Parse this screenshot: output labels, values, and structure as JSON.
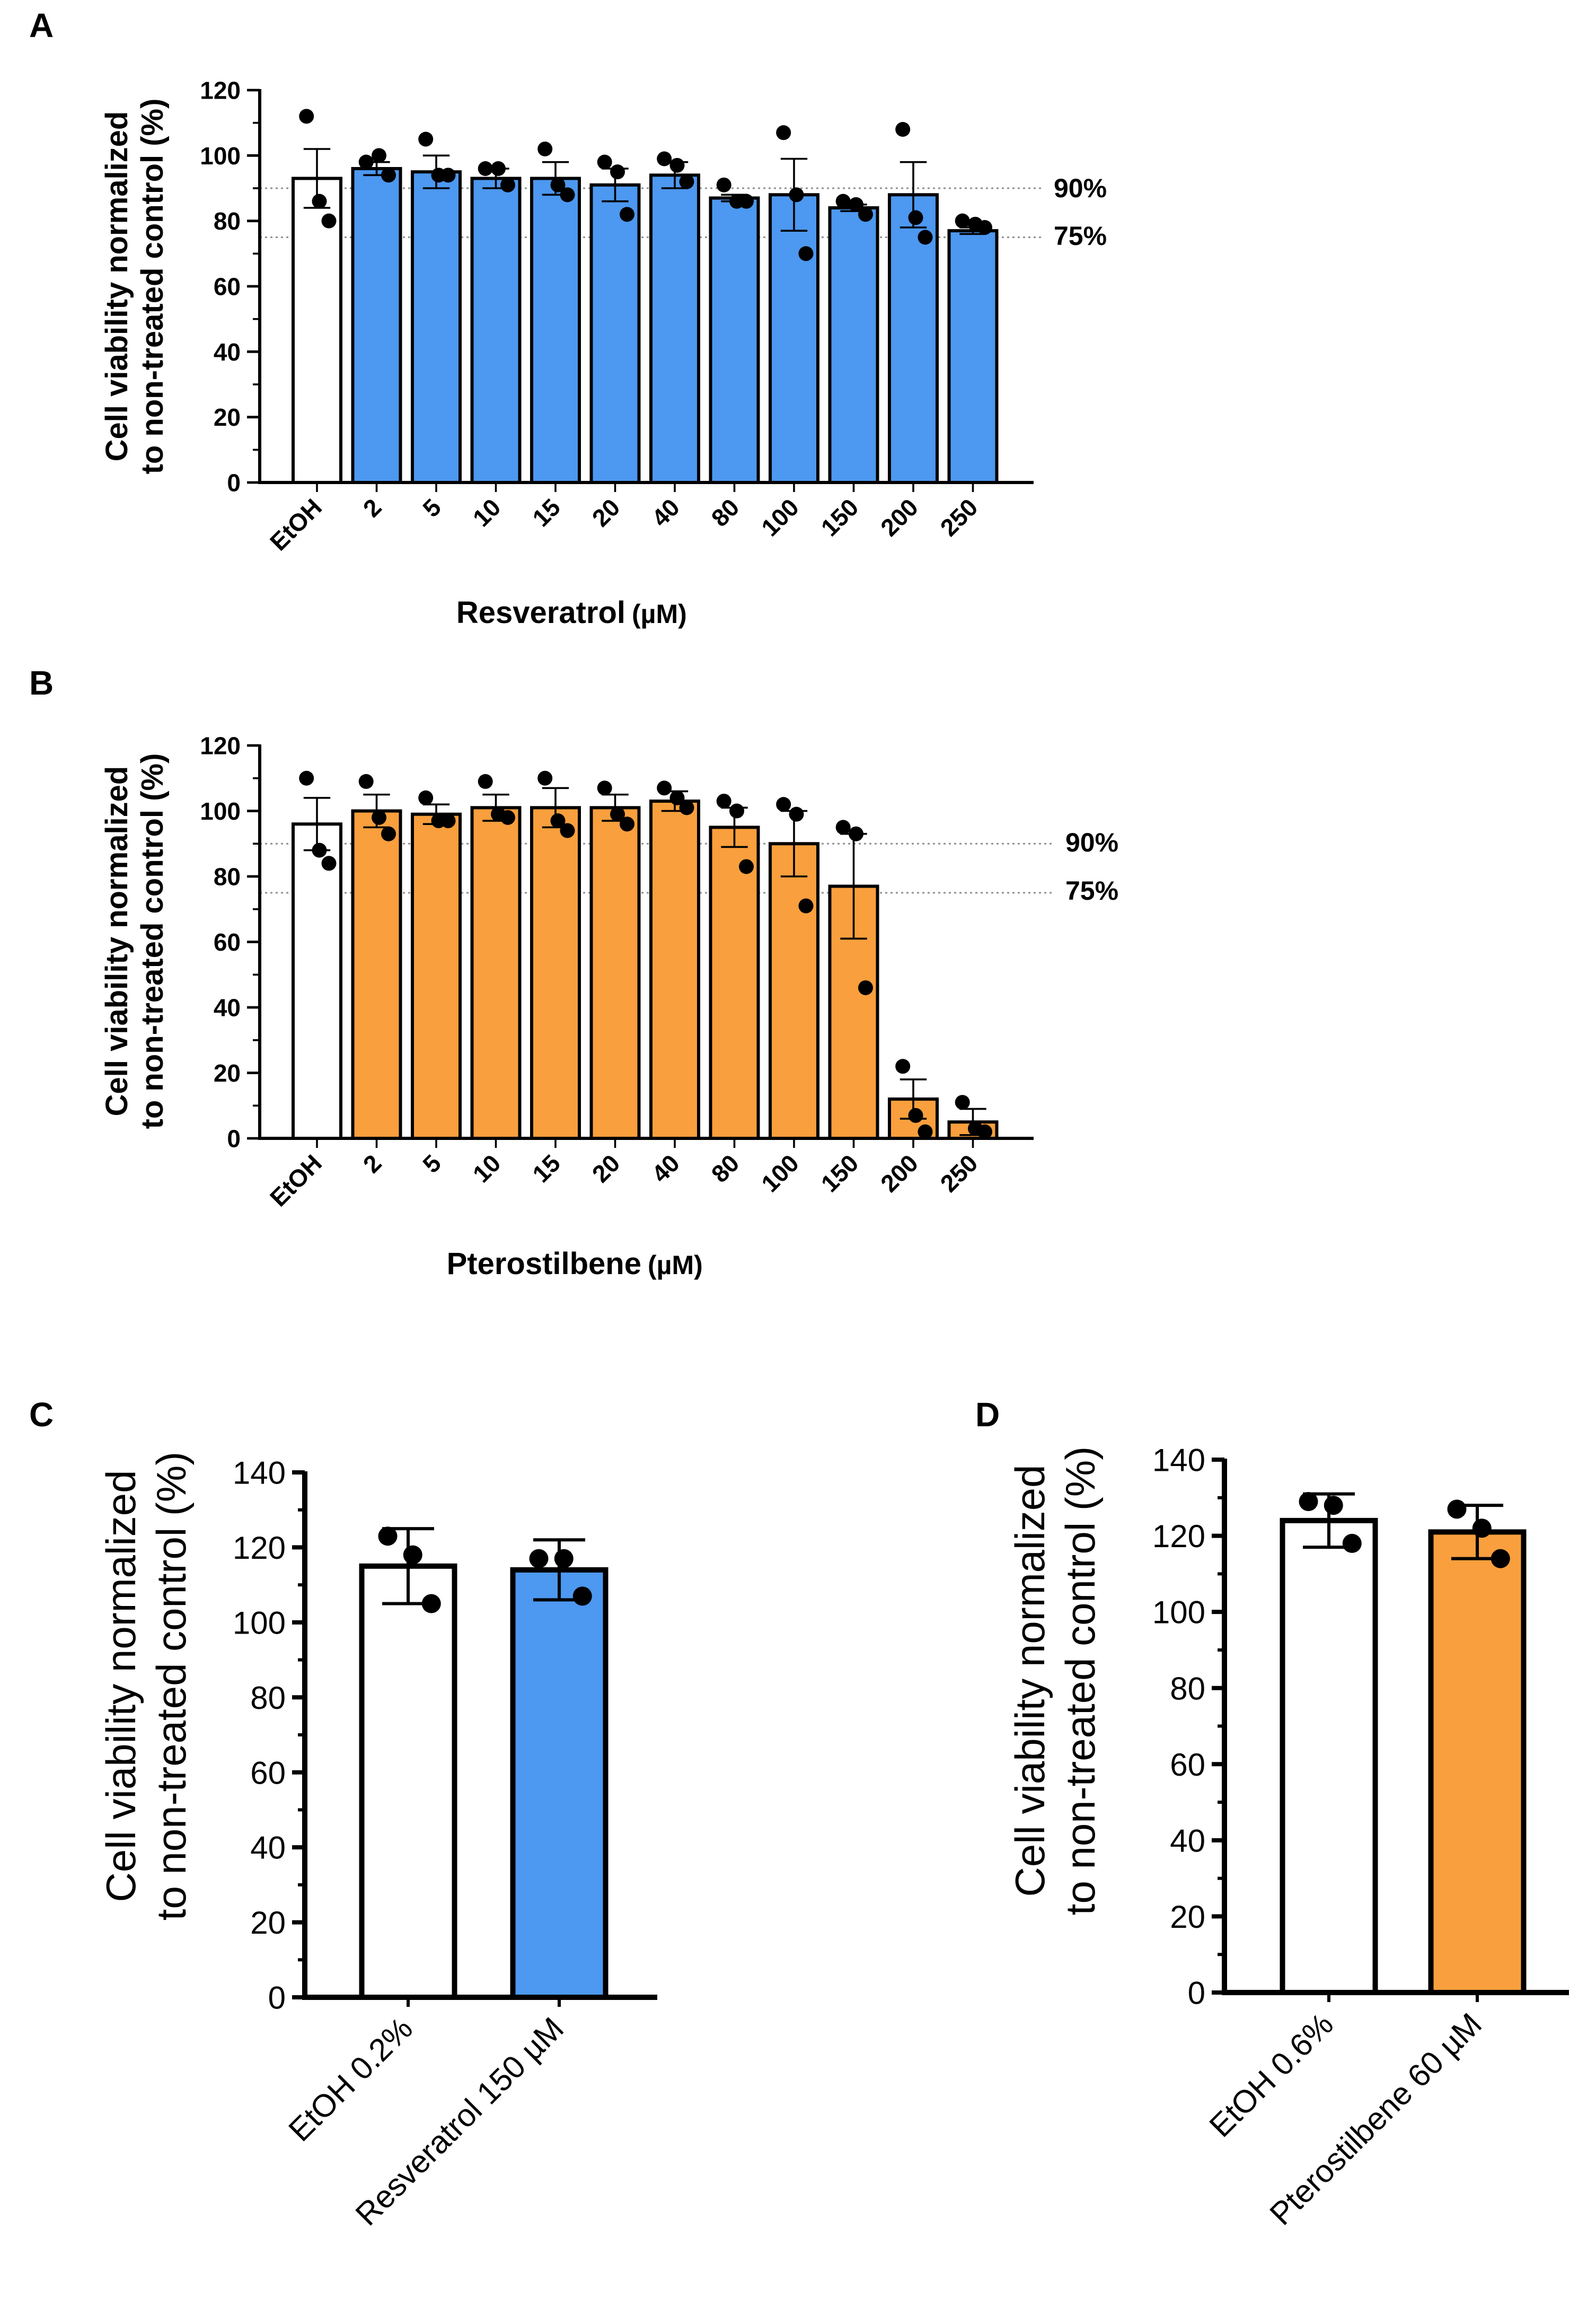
{
  "colors": {
    "control": "#ffffff",
    "resveratrol": "#4d98f0",
    "pterostilbene": "#f99f3d",
    "axis": "#000000",
    "reference_line": "#909090"
  },
  "chart_data": [
    {
      "panel": "A",
      "type": "bar",
      "ylabel": [
        "Cell viability normalized",
        "to non-treated control (%)"
      ],
      "xlabel_main": "Resveratrol",
      "xlabel_unit": "(µM)",
      "ylim": [
        0,
        120
      ],
      "yticks": [
        0,
        20,
        40,
        60,
        80,
        100,
        120
      ],
      "categories": [
        "EtOH",
        "2",
        "5",
        "10",
        "15",
        "20",
        "40",
        "80",
        "100",
        "150",
        "200",
        "250"
      ],
      "values": [
        93,
        96,
        95,
        93,
        93,
        91,
        94,
        87,
        88,
        84,
        88,
        77
      ],
      "errors": [
        9,
        2,
        5,
        3,
        5,
        5,
        4,
        1,
        11,
        1,
        10,
        1
      ],
      "points": [
        [
          112,
          86,
          80
        ],
        [
          98,
          100,
          94
        ],
        [
          105,
          94,
          94
        ],
        [
          96,
          96,
          91
        ],
        [
          102,
          91,
          88
        ],
        [
          98,
          95,
          82
        ],
        [
          99,
          97,
          92
        ],
        [
          91,
          86,
          86
        ],
        [
          107,
          88,
          70
        ],
        [
          86,
          85,
          82
        ],
        [
          108,
          81,
          75
        ],
        [
          80,
          79,
          78
        ]
      ],
      "fill_colors": [
        "#ffffff",
        "#4d98f0",
        "#4d98f0",
        "#4d98f0",
        "#4d98f0",
        "#4d98f0",
        "#4d98f0",
        "#4d98f0",
        "#4d98f0",
        "#4d98f0",
        "#4d98f0",
        "#4d98f0"
      ],
      "reference_lines": [
        {
          "value": 90,
          "label": "90%"
        },
        {
          "value": 75,
          "label": "75%"
        }
      ]
    },
    {
      "panel": "B",
      "type": "bar",
      "ylabel": [
        "Cell viability normalized",
        "to non-treated control (%)"
      ],
      "xlabel_main": "Pterostilbene",
      "xlabel_unit": "(µM)",
      "ylim": [
        0,
        120
      ],
      "yticks": [
        0,
        20,
        40,
        60,
        80,
        100,
        120
      ],
      "categories": [
        "EtOH",
        "2",
        "5",
        "10",
        "15",
        "20",
        "40",
        "80",
        "100",
        "150",
        "200",
        "250"
      ],
      "values": [
        96,
        100,
        99,
        101,
        101,
        101,
        103,
        95,
        90,
        77,
        12,
        5
      ],
      "errors": [
        8,
        5,
        3,
        4,
        6,
        4,
        3,
        6,
        10,
        16,
        6,
        4
      ],
      "points": [
        [
          110,
          88,
          84
        ],
        [
          109,
          98,
          93
        ],
        [
          104,
          97,
          97
        ],
        [
          109,
          99,
          98
        ],
        [
          110,
          97,
          94
        ],
        [
          107,
          99,
          96
        ],
        [
          107,
          104,
          101
        ],
        [
          103,
          100,
          83
        ],
        [
          102,
          99,
          71
        ],
        [
          95,
          93,
          46
        ],
        [
          22,
          7,
          2
        ],
        [
          11,
          3,
          2
        ]
      ],
      "fill_colors": [
        "#ffffff",
        "#f99f3d",
        "#f99f3d",
        "#f99f3d",
        "#f99f3d",
        "#f99f3d",
        "#f99f3d",
        "#f99f3d",
        "#f99f3d",
        "#f99f3d",
        "#f99f3d",
        "#f99f3d"
      ],
      "reference_lines": [
        {
          "value": 90,
          "label": "90%"
        },
        {
          "value": 75,
          "label": "75%"
        }
      ]
    },
    {
      "panel": "C",
      "type": "bar",
      "ylabel": [
        "Cell viability normalized",
        "to non-treated control (%)"
      ],
      "ylim": [
        0,
        140
      ],
      "yticks": [
        0,
        20,
        40,
        60,
        80,
        100,
        120,
        140
      ],
      "categories": [
        "EtOH 0.2%",
        "Resveratrol 150 µM"
      ],
      "values": [
        115,
        114
      ],
      "errors": [
        10,
        8
      ],
      "points": [
        [
          123,
          118,
          105
        ],
        [
          117,
          117,
          107
        ]
      ],
      "fill_colors": [
        "#ffffff",
        "#4d98f0"
      ]
    },
    {
      "panel": "D",
      "type": "bar",
      "ylabel": [
        "Cell viability normalized",
        "to non-treated control (%)"
      ],
      "ylim": [
        0,
        140
      ],
      "yticks": [
        0,
        20,
        40,
        60,
        80,
        100,
        120,
        140
      ],
      "categories": [
        "EtOH 0.6%",
        "Pterostilbene 60 µM"
      ],
      "values": [
        124,
        121
      ],
      "errors": [
        7,
        7
      ],
      "points": [
        [
          129,
          128,
          118
        ],
        [
          127,
          122,
          114
        ]
      ],
      "fill_colors": [
        "#ffffff",
        "#f99f3d"
      ]
    }
  ]
}
